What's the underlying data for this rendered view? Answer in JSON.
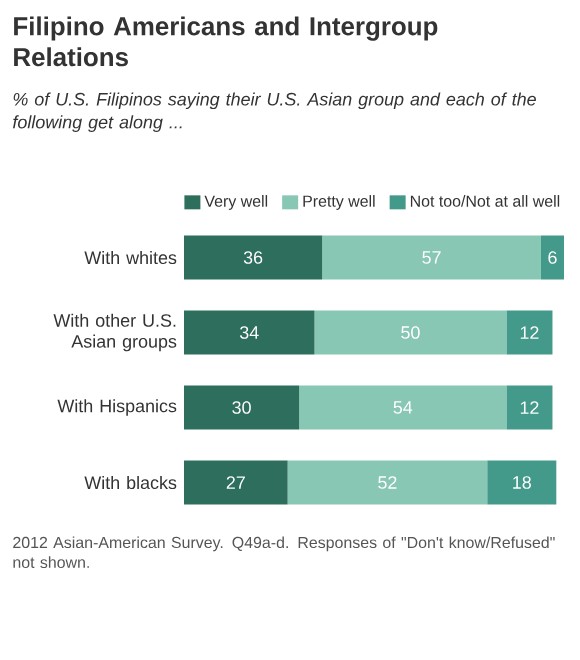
{
  "chart_data": {
    "type": "bar",
    "orientation": "horizontal",
    "stacked": true,
    "data_labels": true,
    "legend": "top",
    "title": "Filipino Americans and Intergroup Relations",
    "subtitle": "% of U.S. Filipinos saying their U.S. Asian group and each of the following get along ...",
    "categories": [
      "With whites",
      "With other U.S. Asian groups",
      "With Hispanics",
      "With blacks"
    ],
    "series": [
      {
        "name": "Very well",
        "color": "#2d6e5c",
        "values": [
          36,
          34,
          30,
          27
        ]
      },
      {
        "name": "Pretty well",
        "color": "#88c7b4",
        "values": [
          57,
          50,
          54,
          52
        ]
      },
      {
        "name": "Not too/Not at all well",
        "color": "#43998a",
        "values": [
          6,
          12,
          12,
          18
        ]
      }
    ],
    "annotations": [
      "2012 Asian-American Survey. Q49a-d. Responses of \"Don't know/Refused\" not shown."
    ]
  }
}
